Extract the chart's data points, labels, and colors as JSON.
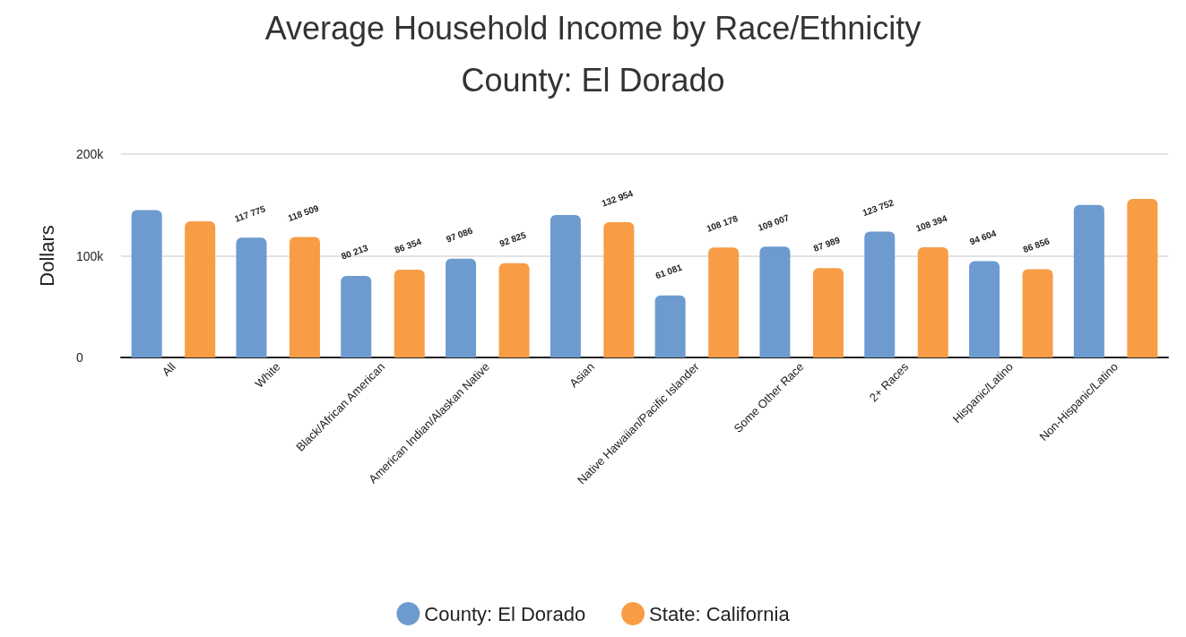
{
  "chart_data": {
    "type": "bar",
    "title": "Average Household Income by Race/Ethnicity",
    "subtitle": "County: El Dorado",
    "ylabel": "Dollars",
    "categories": [
      "All",
      "White",
      "Black/African American",
      "American Indian/Alaskan Native",
      "Asian",
      "Native Hawaiian/Pacific Islander",
      "Some Other Race",
      "2+ Races",
      "Hispanic/Latino",
      "Non-Hispanic/Latino"
    ],
    "series": [
      {
        "name": "County: El Dorado",
        "color": "#6d9bcf",
        "values": [
          145000,
          117775,
          80213,
          97086,
          140000,
          61081,
          109007,
          123752,
          94604,
          150000
        ],
        "value_labels": [
          null,
          "117 775",
          "80 213",
          "97 086",
          null,
          "61 081",
          "109 007",
          "123 752",
          "94 604",
          null
        ]
      },
      {
        "name": "State: California",
        "color": "#f89d45",
        "values": [
          134000,
          118509,
          86354,
          92825,
          132954,
          108178,
          87989,
          108394,
          86856,
          156000
        ],
        "value_labels": [
          null,
          "118 509",
          "86 354",
          "92 825",
          "132 954",
          "108 178",
          "87 989",
          "108 394",
          "86 856",
          null
        ]
      }
    ],
    "ylim": [
      0,
      200000
    ],
    "yticks": [
      0,
      {
        "value": 100000,
        "label": "100k"
      },
      {
        "value": 200000,
        "label": "200k"
      }
    ],
    "grid": "y",
    "legend": "bottom"
  }
}
